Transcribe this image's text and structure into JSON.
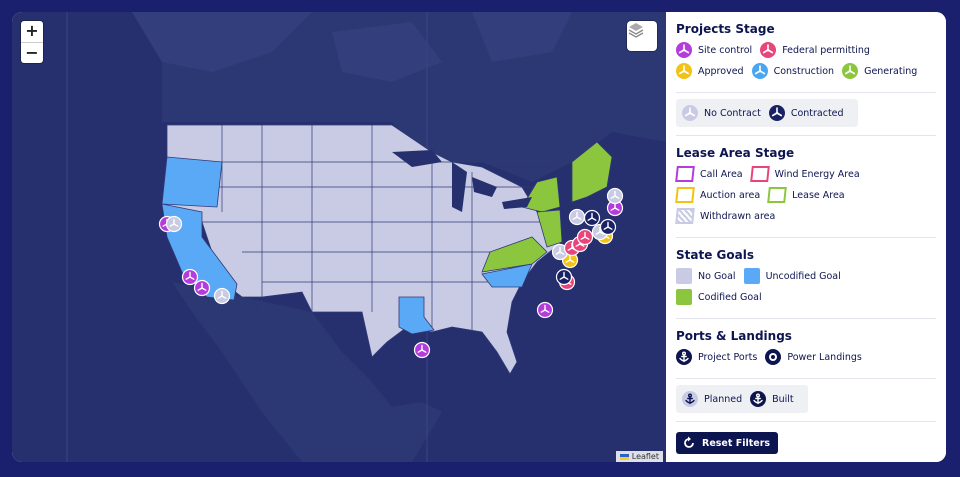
{
  "map": {
    "zoom_in": "+",
    "zoom_out": "−",
    "attribution": "Leaflet",
    "colors": {
      "ocean": "#26306e",
      "land_other": "#2c3874",
      "no_goal": "#c8cbe3",
      "uncodified_goal": "#5aa9f7",
      "codified_goal": "#8cc63f",
      "border": "#303a78"
    }
  },
  "legend": {
    "projects_stage": {
      "title": "Projects Stage",
      "items": [
        {
          "label": "Site control",
          "color": "#b43cdc",
          "icon": "turbine-icon"
        },
        {
          "label": "Federal permitting",
          "color": "#e8457a",
          "icon": "turbine-icon"
        },
        {
          "label": "Approved",
          "color": "#f2c214",
          "icon": "turbine-icon"
        },
        {
          "label": "Construction",
          "color": "#4aa6f0",
          "icon": "turbine-icon"
        },
        {
          "label": "Generating",
          "color": "#8cc63f",
          "icon": "turbine-icon"
        }
      ],
      "contract": [
        {
          "label": "No Contract",
          "color": "#c8cbe3",
          "icon": "turbine-icon"
        },
        {
          "label": "Contracted",
          "color": "#1a2266",
          "icon": "turbine-icon"
        }
      ]
    },
    "lease_area_stage": {
      "title": "Lease Area Stage",
      "items": [
        {
          "label": "Call Area",
          "color": "#b43cdc"
        },
        {
          "label": "Wind Energy Area",
          "color": "#e8457a"
        },
        {
          "label": "Auction area",
          "color": "#f2c214"
        },
        {
          "label": "Lease Area",
          "color": "#8cc63f"
        },
        {
          "label": "Withdrawn area",
          "color": "#c8cbe3"
        }
      ]
    },
    "state_goals": {
      "title": "State Goals",
      "items": [
        {
          "label": "No Goal",
          "color": "#c8cbe3"
        },
        {
          "label": "Uncodified Goal",
          "color": "#5aa9f7"
        },
        {
          "label": "Codified Goal",
          "color": "#8cc63f"
        }
      ]
    },
    "ports_landings": {
      "title": "Ports & Landings",
      "items": [
        {
          "label": "Project Ports",
          "icon": "anchor-icon"
        },
        {
          "label": "Power Landings",
          "icon": "landing-icon"
        }
      ],
      "status": [
        {
          "label": "Planned",
          "icon": "anchor-icon"
        },
        {
          "label": "Built",
          "icon": "anchor-icon"
        }
      ]
    },
    "reset_button": "Reset Filters"
  }
}
